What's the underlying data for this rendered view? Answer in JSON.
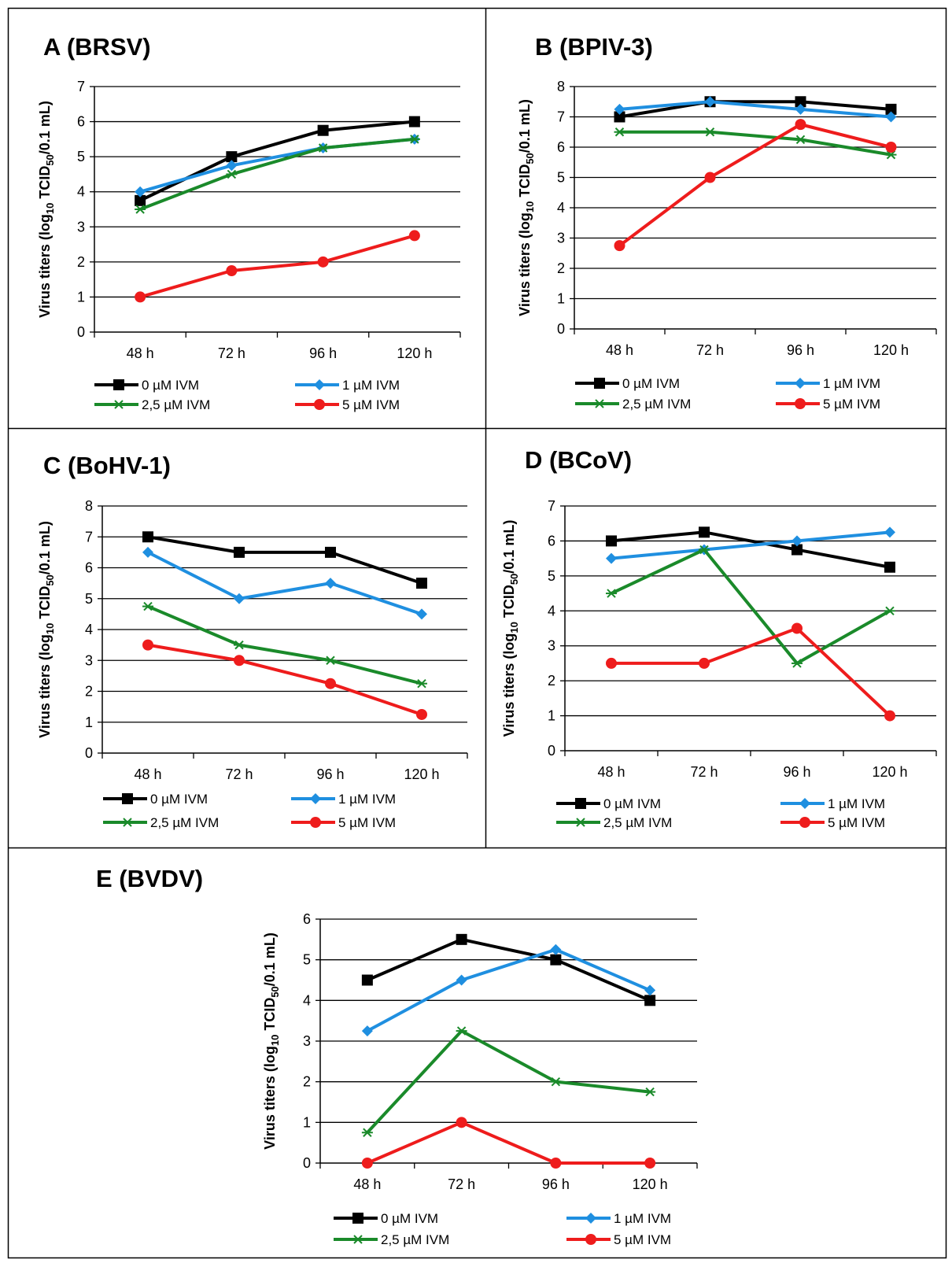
{
  "chart_data": [
    {
      "type": "line",
      "title": "A (BRSV)",
      "ylabel_main": "Virus titers (log",
      "ylabel_sub1": "10",
      "ylabel_mid": " TCID",
      "ylabel_sub2": "50",
      "ylabel_end": "/0.1 mL)",
      "categories": [
        "48 h",
        "72 h",
        "96 h",
        "120 h"
      ],
      "ylim": [
        0,
        7
      ],
      "yticks": [
        "0",
        "1",
        "2",
        "3",
        "4",
        "5",
        "6",
        "7"
      ],
      "grid": true,
      "legend_position": "bottom",
      "series": [
        {
          "name": "0 µM IVM",
          "values": [
            3.75,
            5.0,
            5.75,
            6.0
          ],
          "color": "#000000",
          "marker": "square"
        },
        {
          "name": "1 µM IVM",
          "values": [
            4.0,
            4.75,
            5.25,
            5.5
          ],
          "color": "#1f8fe0",
          "marker": "diamond"
        },
        {
          "name": "2,5 µM IVM",
          "values": [
            3.5,
            4.5,
            5.25,
            5.5
          ],
          "color": "#1a8a2a",
          "marker": "star"
        },
        {
          "name": "5 µM IVM",
          "values": [
            1.0,
            1.75,
            2.0,
            2.75
          ],
          "color": "#ee1c1c",
          "marker": "circle"
        }
      ]
    },
    {
      "type": "line",
      "title": "B (BPIV-3)",
      "ylabel_main": "Virus titers (log",
      "ylabel_sub1": "10",
      "ylabel_mid": " TCID",
      "ylabel_sub2": "50",
      "ylabel_end": "/0.1 mL)",
      "categories": [
        "48 h",
        "72 h",
        "96 h",
        "120 h"
      ],
      "ylim": [
        0,
        8
      ],
      "yticks": [
        "0",
        "1",
        "2",
        "3",
        "4",
        "5",
        "6",
        "7",
        "8"
      ],
      "grid": true,
      "legend_position": "bottom",
      "series": [
        {
          "name": "0 µM IVM",
          "values": [
            7.0,
            7.5,
            7.5,
            7.25
          ],
          "color": "#000000",
          "marker": "square"
        },
        {
          "name": "1 µM IVM",
          "values": [
            7.25,
            7.5,
            7.25,
            7.0
          ],
          "color": "#1f8fe0",
          "marker": "diamond"
        },
        {
          "name": "2,5 µM IVM",
          "values": [
            6.5,
            6.5,
            6.25,
            5.75
          ],
          "color": "#1a8a2a",
          "marker": "star"
        },
        {
          "name": "5 µM IVM",
          "values": [
            2.75,
            5.0,
            6.75,
            6.0
          ],
          "color": "#ee1c1c",
          "marker": "circle"
        }
      ]
    },
    {
      "type": "line",
      "title": "C (BoHV-1)",
      "ylabel_main": "Virus titers (log",
      "ylabel_sub1": "10",
      "ylabel_mid": " TCID",
      "ylabel_sub2": "50",
      "ylabel_end": "/0.1 mL)",
      "categories": [
        "48 h",
        "72 h",
        "96 h",
        "120 h"
      ],
      "ylim": [
        0,
        8
      ],
      "yticks": [
        "0",
        "1",
        "2",
        "3",
        "4",
        "5",
        "6",
        "7",
        "8"
      ],
      "grid": true,
      "legend_position": "bottom",
      "series": [
        {
          "name": "0 µM IVM",
          "values": [
            7.0,
            6.5,
            6.5,
            5.5
          ],
          "color": "#000000",
          "marker": "square"
        },
        {
          "name": "1 µM IVM",
          "values": [
            6.5,
            5.0,
            5.5,
            4.5
          ],
          "color": "#1f8fe0",
          "marker": "diamond"
        },
        {
          "name": "2,5 µM IVM",
          "values": [
            4.75,
            3.5,
            3.0,
            2.25
          ],
          "color": "#1a8a2a",
          "marker": "star"
        },
        {
          "name": "5 µM IVM",
          "values": [
            3.5,
            3.0,
            2.25,
            1.25
          ],
          "color": "#ee1c1c",
          "marker": "circle"
        }
      ]
    },
    {
      "type": "line",
      "title": "D (BCoV)",
      "ylabel_main": "Virus titers (log",
      "ylabel_sub1": "10",
      "ylabel_mid": " TCID",
      "ylabel_sub2": "50",
      "ylabel_end": "/0.1 mL)",
      "categories": [
        "48 h",
        "72 h",
        "96 h",
        "120 h"
      ],
      "ylim": [
        0,
        7
      ],
      "yticks": [
        "0",
        "1",
        "2",
        "3",
        "4",
        "5",
        "6",
        "7"
      ],
      "grid": true,
      "legend_position": "bottom",
      "series": [
        {
          "name": "0 µM IVM",
          "values": [
            6.0,
            6.25,
            5.75,
            5.25
          ],
          "color": "#000000",
          "marker": "square"
        },
        {
          "name": "1 µM IVM",
          "values": [
            5.5,
            5.75,
            6.0,
            6.25
          ],
          "color": "#1f8fe0",
          "marker": "diamond"
        },
        {
          "name": "2,5 µM IVM",
          "values": [
            4.5,
            5.75,
            2.5,
            4.0
          ],
          "color": "#1a8a2a",
          "marker": "star"
        },
        {
          "name": "5 µM IVM",
          "values": [
            2.5,
            2.5,
            3.5,
            1.0
          ],
          "color": "#ee1c1c",
          "marker": "circle"
        }
      ]
    },
    {
      "type": "line",
      "title": "E (BVDV)",
      "ylabel_main": "Virus titers (log",
      "ylabel_sub1": "10",
      "ylabel_mid": " TCID",
      "ylabel_sub2": "50",
      "ylabel_end": "/0.1 mL)",
      "categories": [
        "48 h",
        "72 h",
        "96 h",
        "120 h"
      ],
      "ylim": [
        0,
        6
      ],
      "yticks": [
        "0",
        "1",
        "2",
        "3",
        "4",
        "5",
        "6"
      ],
      "grid": true,
      "legend_position": "bottom",
      "series": [
        {
          "name": "0 µM IVM",
          "values": [
            4.5,
            5.5,
            5.0,
            4.0
          ],
          "color": "#000000",
          "marker": "square"
        },
        {
          "name": "1 µM IVM",
          "values": [
            3.25,
            4.5,
            5.25,
            4.25
          ],
          "color": "#1f8fe0",
          "marker": "diamond"
        },
        {
          "name": "2,5 µM IVM",
          "values": [
            0.75,
            3.25,
            2.0,
            1.75
          ],
          "color": "#1a8a2a",
          "marker": "star"
        },
        {
          "name": "5 µM IVM",
          "values": [
            0.0,
            1.0,
            0.0,
            0.0
          ],
          "color": "#ee1c1c",
          "marker": "circle"
        }
      ]
    }
  ]
}
